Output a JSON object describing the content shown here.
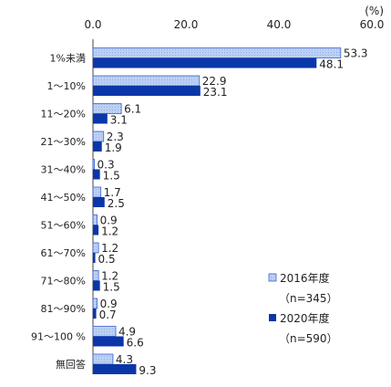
{
  "chart_data": {
    "type": "bar",
    "orientation": "horizontal",
    "unit": "(%)",
    "xlim": [
      0,
      60
    ],
    "x_ticks": [
      "0.0",
      "20.0",
      "40.0",
      "60.0"
    ],
    "categories": [
      "1%未満",
      "1～10%",
      "11～20%",
      "21～30%",
      "31～40%",
      "41～50%",
      "51～60%",
      "61～70%",
      "71～80%",
      "81～90%",
      "91～100 %",
      "無回答"
    ],
    "series": [
      {
        "name": "2016年度",
        "n_label": "（n=345）",
        "values": [
          53.3,
          22.9,
          6.1,
          2.3,
          0.3,
          1.7,
          0.9,
          1.2,
          1.2,
          0.9,
          4.9,
          4.3
        ],
        "labels": [
          "53.3",
          "22.9",
          "6.1",
          "2.3",
          "0.3",
          "1.7",
          "0.9",
          "1.2",
          "1.2",
          "0.9",
          "4.9",
          "4.3"
        ],
        "color": "#bcd0f2",
        "stroke": "#3a5fd6",
        "pattern": "dotted-light-blue"
      },
      {
        "name": "2020年度",
        "n_label": "（n=590）",
        "values": [
          48.1,
          23.1,
          3.1,
          1.9,
          1.5,
          2.5,
          1.2,
          0.5,
          1.5,
          0.7,
          6.6,
          9.3
        ],
        "labels": [
          "48.1",
          "23.1",
          "3.1",
          "1.9",
          "1.5",
          "2.5",
          "1.2",
          "0.5",
          "1.5",
          "0.7",
          "6.6",
          "9.3"
        ],
        "color": "#0a36a8"
      }
    ],
    "grid": false,
    "legend_position": "right-bottom"
  }
}
